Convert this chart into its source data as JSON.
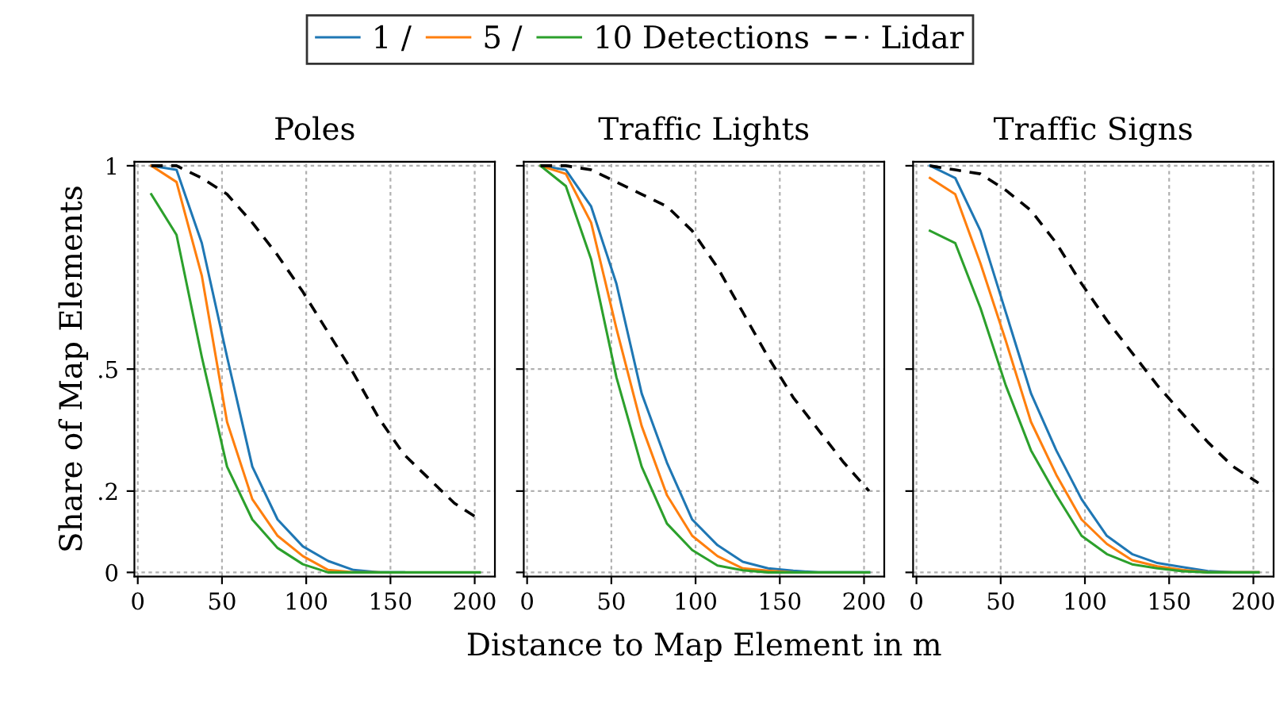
{
  "chart_data": [
    {
      "type": "line",
      "title": "Poles",
      "ylabel": "Share of Map Elements",
      "legend": "top",
      "grid": true,
      "line_style": "solid",
      "xlim": [
        -2,
        212
      ],
      "ylim": [
        -0.01,
        1.01
      ],
      "xticks": [
        0,
        50,
        100,
        150,
        200
      ],
      "yticks": [
        0,
        {
          "value": 0.2,
          "label": ".2"
        },
        {
          "value": 0.5,
          "label": ".5"
        },
        1
      ],
      "x": [
        8,
        23,
        38,
        53,
        68,
        83,
        98,
        113,
        128,
        143,
        158,
        173,
        188,
        203
      ],
      "series": [
        {
          "name": "1 /",
          "color": "#1f77b4",
          "values": [
            1.0,
            0.99,
            0.81,
            0.53,
            0.26,
            0.13,
            0.064,
            0.028,
            0.006,
            0,
            0,
            null,
            null,
            null
          ]
        },
        {
          "name": "5 /",
          "color": "#ff7f0e",
          "values": [
            1.0,
            0.96,
            0.73,
            0.37,
            0.18,
            0.09,
            0.04,
            0.006,
            0,
            0,
            null,
            null,
            null,
            null
          ]
        },
        {
          "name": "10 Detections",
          "color": "#2ca02c",
          "values": [
            0.93,
            0.83,
            0.53,
            0.26,
            0.13,
            0.06,
            0.02,
            0,
            0,
            0,
            0,
            0,
            0,
            0
          ]
        },
        {
          "name": "Lidar",
          "color": "#000000",
          "line_style": "dashed",
          "values": [
            1.0,
            1.0,
            0.97,
            0.93,
            0.86,
            0.78,
            0.69,
            0.59,
            0.49,
            0.38,
            0.29,
            0.23,
            0.17,
            0.13
          ]
        }
      ]
    },
    {
      "type": "line",
      "title": "Traffic Lights",
      "xlabel": "Distance to Map Element in m",
      "grid": true,
      "line_style": "solid",
      "tick_labels": "x",
      "xlim": [
        -2,
        212
      ],
      "ylim": [
        -0.01,
        1.01
      ],
      "xticks": [
        0,
        50,
        100,
        150,
        200
      ],
      "yticks": [
        {
          "value": 0,
          "label": null
        },
        {
          "value": 0.2,
          "label": null
        },
        {
          "value": 0.5,
          "label": null
        },
        {
          "value": 1,
          "label": null
        }
      ],
      "x": [
        8,
        23,
        38,
        53,
        68,
        83,
        98,
        113,
        128,
        143,
        158,
        173,
        188,
        203
      ],
      "series": [
        {
          "color": "#1f77b4",
          "values": [
            1.0,
            0.99,
            0.9,
            0.71,
            0.44,
            0.27,
            0.13,
            0.067,
            0.026,
            0.01,
            0.004,
            0,
            0,
            0
          ]
        },
        {
          "color": "#ff7f0e",
          "values": [
            1.0,
            0.98,
            0.86,
            0.6,
            0.36,
            0.19,
            0.09,
            0.04,
            0.01,
            0.004,
            0,
            null,
            null,
            null
          ]
        },
        {
          "color": "#2ca02c",
          "values": [
            1.0,
            0.95,
            0.77,
            0.48,
            0.26,
            0.12,
            0.055,
            0.017,
            0.005,
            0,
            0,
            0,
            0,
            0
          ]
        },
        {
          "color": "#000000",
          "line_style": "dashed",
          "values": [
            1.0,
            1.0,
            0.99,
            0.96,
            0.93,
            0.9,
            0.84,
            0.75,
            0.64,
            0.53,
            0.43,
            0.35,
            0.27,
            0.2
          ]
        }
      ]
    },
    {
      "type": "line",
      "title": "Traffic Signs",
      "grid": true,
      "line_style": "solid",
      "tick_labels": "x",
      "xlim": [
        -2,
        212
      ],
      "ylim": [
        -0.01,
        1.01
      ],
      "xticks": [
        0,
        50,
        100,
        150,
        200
      ],
      "yticks": [
        {
          "value": 0,
          "label": null
        },
        {
          "value": 0.2,
          "label": null
        },
        {
          "value": 0.5,
          "label": null
        },
        {
          "value": 1,
          "label": null
        }
      ],
      "x": [
        8,
        23,
        38,
        53,
        68,
        83,
        98,
        113,
        128,
        143,
        158,
        173,
        188,
        203
      ],
      "series": [
        {
          "color": "#1f77b4",
          "values": [
            1.0,
            0.97,
            0.84,
            0.64,
            0.44,
            0.3,
            0.18,
            0.09,
            0.045,
            0.023,
            0.013,
            0.003,
            0,
            0
          ]
        },
        {
          "color": "#ff7f0e",
          "values": [
            0.97,
            0.93,
            0.76,
            0.57,
            0.37,
            0.24,
            0.13,
            0.07,
            0.03,
            0.015,
            0.006,
            0,
            0,
            0
          ]
        },
        {
          "color": "#2ca02c",
          "values": [
            0.84,
            0.81,
            0.65,
            0.46,
            0.3,
            0.19,
            0.09,
            0.045,
            0.02,
            0.01,
            0.003,
            0,
            0,
            0
          ]
        },
        {
          "color": "#000000",
          "line_style": "dashed",
          "values": [
            1.0,
            0.99,
            0.98,
            0.94,
            0.89,
            0.81,
            0.71,
            0.62,
            0.54,
            0.46,
            0.39,
            0.32,
            0.26,
            0.22
          ]
        }
      ]
    }
  ]
}
